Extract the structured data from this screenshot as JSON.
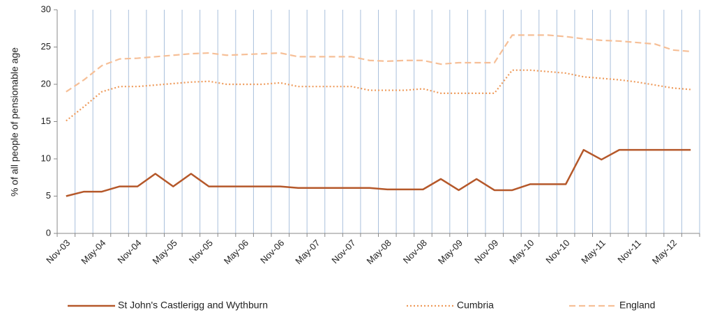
{
  "chart_data": {
    "type": "line",
    "y_label": "% of all people of pensionable age",
    "categories": [
      "Nov-03",
      null,
      "May-04",
      null,
      "Nov-04",
      null,
      "May-05",
      null,
      "Nov-05",
      null,
      "May-06",
      null,
      "Nov-06",
      null,
      "May-07",
      null,
      "Nov-07",
      null,
      "May-08",
      null,
      "Nov-08",
      null,
      "May-09",
      null,
      "Nov-09",
      null,
      "May-10",
      null,
      "Nov-10",
      null,
      "May-11",
      null,
      "Nov-11",
      null,
      "May-12",
      null
    ],
    "series": [
      {
        "name": "St John's Castlerigg and Wythburn",
        "color": "#b5582a",
        "style": "solid",
        "values": [
          5.0,
          5.6,
          5.6,
          6.3,
          6.3,
          8.0,
          6.3,
          8.0,
          6.3,
          6.3,
          6.3,
          6.3,
          6.3,
          6.1,
          6.1,
          6.1,
          6.1,
          6.1,
          5.9,
          5.9,
          5.9,
          7.3,
          5.8,
          7.3,
          5.8,
          5.8,
          6.6,
          6.6,
          6.6,
          11.2,
          9.9,
          11.2,
          11.2,
          11.2,
          11.2,
          11.2
        ]
      },
      {
        "name": "Cumbria",
        "color": "#ee9a5a",
        "style": "dotted",
        "values": [
          15.1,
          17.0,
          19.0,
          19.7,
          19.7,
          19.9,
          20.1,
          20.3,
          20.4,
          20.0,
          20.0,
          20.0,
          20.2,
          19.7,
          19.7,
          19.7,
          19.7,
          19.2,
          19.2,
          19.2,
          19.4,
          18.8,
          18.8,
          18.8,
          18.8,
          21.9,
          21.9,
          21.7,
          21.5,
          21.0,
          20.8,
          20.6,
          20.3,
          19.9,
          19.5,
          19.3
        ]
      },
      {
        "name": "England",
        "color": "#f6bf97",
        "style": "dashed",
        "values": [
          19.0,
          20.6,
          22.5,
          23.4,
          23.5,
          23.7,
          23.9,
          24.1,
          24.2,
          23.9,
          24.0,
          24.1,
          24.2,
          23.7,
          23.7,
          23.7,
          23.7,
          23.2,
          23.1,
          23.2,
          23.2,
          22.7,
          22.9,
          22.9,
          22.9,
          26.6,
          26.6,
          26.6,
          26.4,
          26.1,
          25.9,
          25.8,
          25.6,
          25.4,
          24.6,
          24.4
        ]
      }
    ],
    "ylim": [
      0,
      30
    ],
    "yticks": [
      0,
      5,
      10,
      15,
      20,
      25,
      30
    ],
    "grid": "vertical",
    "grid_color": "#a9c0dc",
    "legend": "bottom"
  }
}
